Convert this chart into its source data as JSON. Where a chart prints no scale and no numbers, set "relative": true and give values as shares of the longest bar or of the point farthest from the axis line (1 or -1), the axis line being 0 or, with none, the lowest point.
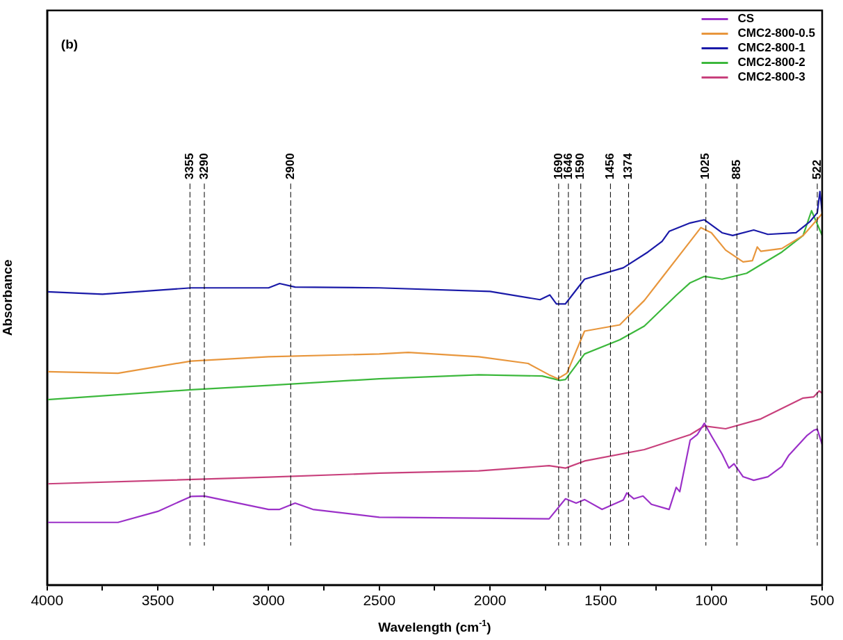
{
  "chart_data": {
    "type": "line",
    "relative": true,
    "xlabel": "Wavelength (cm$^{-1}$)",
    "ylabel": "Absorbance",
    "annotations": [
      "(b)"
    ],
    "xlim": [
      4000,
      500
    ],
    "xticks": [
      4000,
      {
        "value": 3750,
        "label": null
      },
      3500,
      {
        "value": 3250,
        "label": null
      },
      3000,
      {
        "value": 2750,
        "label": null
      },
      2500,
      {
        "value": 2250,
        "label": null
      },
      2000,
      {
        "value": 1750,
        "label": null
      },
      1500,
      {
        "value": 1250,
        "label": null
      },
      1000,
      {
        "value": 750,
        "label": null
      },
      500
    ],
    "grid": false,
    "legend": "top right",
    "marker": "none",
    "line_style": "solid",
    "series": [
      {
        "name": "CS",
        "color": "#9b30c8",
        "x": [
          4000,
          3680,
          3500,
          3350,
          3290,
          3000,
          2950,
          2880,
          2800,
          2500,
          2051,
          1733,
          1659,
          1611,
          1573,
          1494,
          1398,
          1382,
          1350,
          1309,
          1271,
          1191,
          1159,
          1143,
          1096,
          1064,
          1032,
          1000,
          952,
          921,
          898,
          857,
          809,
          745,
          682,
          650,
          570,
          538,
          522,
          500
        ],
        "values": [
          0.159,
          0.159,
          0.187,
          0.225,
          0.226,
          0.192,
          0.192,
          0.208,
          0.192,
          0.172,
          0.17,
          0.168,
          0.219,
          0.208,
          0.217,
          0.192,
          0.216,
          0.234,
          0.219,
          0.226,
          0.205,
          0.192,
          0.248,
          0.237,
          0.368,
          0.382,
          0.411,
          0.379,
          0.333,
          0.297,
          0.308,
          0.275,
          0.266,
          0.275,
          0.301,
          0.33,
          0.379,
          0.393,
          0.396,
          0.357
        ]
      },
      {
        "name": "CMC2-800-0.5",
        "color": "#e8963c",
        "x": [
          4000,
          3680,
          3350,
          3000,
          2500,
          2369,
          2051,
          1828,
          1733,
          1694,
          1653,
          1573,
          1414,
          1382,
          1303,
          1223,
          1096,
          1048,
          1000,
          936,
          857,
          815,
          793,
          777,
          682,
          586,
          522,
          500
        ],
        "values": [
          0.542,
          0.538,
          0.569,
          0.58,
          0.587,
          0.591,
          0.58,
          0.563,
          0.534,
          0.524,
          0.538,
          0.645,
          0.661,
          0.679,
          0.723,
          0.781,
          0.873,
          0.908,
          0.895,
          0.851,
          0.821,
          0.824,
          0.859,
          0.848,
          0.855,
          0.888,
          0.929,
          0.944
        ]
      },
      {
        "name": "CMC2-800-1",
        "color": "#1a1aa8",
        "x": [
          4000,
          3750,
          3350,
          3000,
          2950,
          2880,
          2500,
          2000,
          1774,
          1730,
          1700,
          1660,
          1573,
          1398,
          1287,
          1223,
          1190,
          1096,
          1032,
          952,
          904,
          809,
          745,
          618,
          554,
          522,
          510,
          500
        ],
        "values": [
          0.745,
          0.739,
          0.755,
          0.755,
          0.766,
          0.757,
          0.755,
          0.746,
          0.725,
          0.737,
          0.714,
          0.714,
          0.777,
          0.806,
          0.846,
          0.873,
          0.899,
          0.92,
          0.928,
          0.895,
          0.888,
          0.902,
          0.891,
          0.895,
          0.924,
          0.946,
          1.0,
          0.946
        ]
      },
      {
        "name": "CMC2-800-2",
        "color": "#3cb83c",
        "x": [
          4000,
          3350,
          3000,
          2500,
          2051,
          1764,
          1685,
          1659,
          1573,
          1414,
          1303,
          1159,
          1096,
          1032,
          952,
          841,
          682,
          586,
          548,
          522,
          500
        ],
        "values": [
          0.471,
          0.496,
          0.507,
          0.524,
          0.534,
          0.531,
          0.52,
          0.522,
          0.587,
          0.623,
          0.658,
          0.736,
          0.768,
          0.784,
          0.777,
          0.792,
          0.846,
          0.888,
          0.951,
          0.917,
          0.888
        ]
      },
      {
        "name": "CMC2-800-3",
        "color": "#c8407c",
        "x": [
          4000,
          3000,
          2500,
          2051,
          1733,
          1659,
          1573,
          1303,
          1096,
          1032,
          936,
          777,
          586,
          538,
          513,
          500
        ],
        "values": [
          0.257,
          0.274,
          0.284,
          0.29,
          0.303,
          0.297,
          0.315,
          0.344,
          0.382,
          0.404,
          0.397,
          0.422,
          0.475,
          0.478,
          0.493,
          0.487
        ]
      }
    ],
    "ref_lines": [
      {
        "axis": "x",
        "value": 3355,
        "label": "3355",
        "color": "#000000",
        "line_style": "dashed"
      },
      {
        "axis": "x",
        "value": 3290,
        "label": "3290",
        "color": "#000000",
        "line_style": "dashed"
      },
      {
        "axis": "x",
        "value": 2900,
        "label": "2900",
        "color": "#000000",
        "line_style": "dashed"
      },
      {
        "axis": "x",
        "value": 1690,
        "label": "1690",
        "color": "#000000",
        "line_style": "dashed"
      },
      {
        "axis": "x",
        "value": 1646,
        "label": "1646",
        "color": "#000000",
        "line_style": "dashed"
      },
      {
        "axis": "x",
        "value": 1590,
        "label": "1590",
        "color": "#000000",
        "line_style": "dashed"
      },
      {
        "axis": "x",
        "value": 1456,
        "label": "1456",
        "color": "#000000",
        "line_style": "dashed"
      },
      {
        "axis": "x",
        "value": 1374,
        "label": "1374",
        "color": "#000000",
        "line_style": "dashed"
      },
      {
        "axis": "x",
        "value": 1025,
        "label": "1025",
        "color": "#000000",
        "line_style": "dashed"
      },
      {
        "axis": "x",
        "value": 885,
        "label": "885",
        "color": "#000000",
        "line_style": "dashed"
      },
      {
        "axis": "x",
        "value": 522,
        "label": "522",
        "color": "#000000",
        "line_style": "dashed"
      }
    ]
  }
}
